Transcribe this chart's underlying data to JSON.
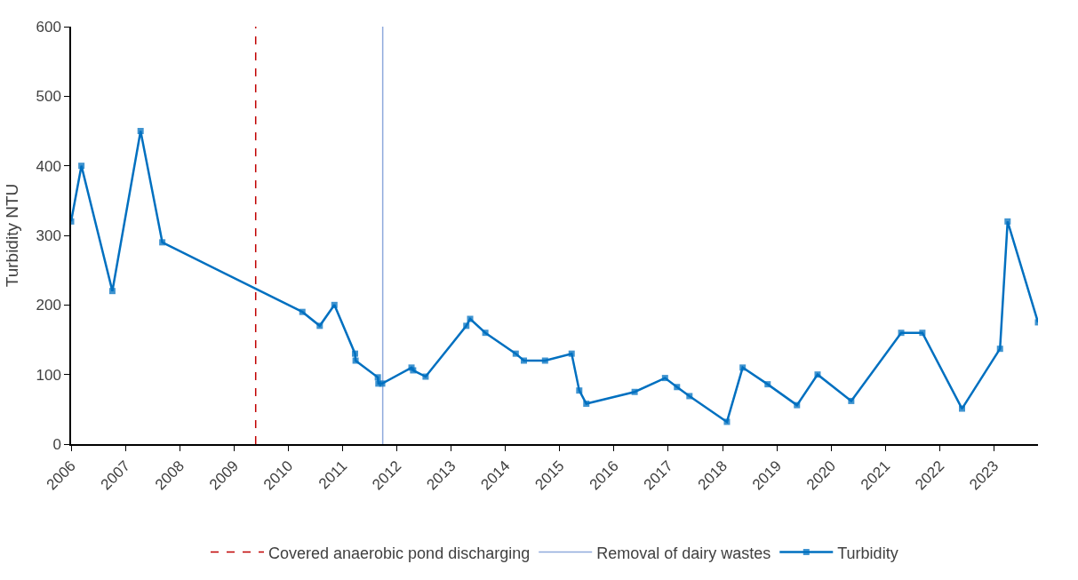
{
  "chart_data": {
    "type": "line",
    "ylabel": "Turbidity NTU",
    "xlim": [
      2006,
      2023.81
    ],
    "xticks": [
      2006,
      2007,
      2008,
      2009,
      2010,
      2011,
      2012,
      2013,
      2014,
      2015,
      2016,
      2017,
      2018,
      2019,
      2020,
      2021,
      2022,
      2023
    ],
    "ylim": [
      0,
      600
    ],
    "yticks": [
      0,
      100,
      200,
      300,
      400,
      500,
      600
    ],
    "legend": "bottom",
    "marker": "square",
    "line_style": "solid",
    "ref_lines": [
      {
        "axis": "x",
        "value": 2009.4,
        "label": "Covered anaerobic pond discharging",
        "color": "#c00000",
        "line_style": "dashed"
      },
      {
        "axis": "x",
        "value": 2011.74,
        "label": "Removal of dairy wastes",
        "color": "#8faadc",
        "line_style": "solid"
      }
    ],
    "series": [
      {
        "name": "Turbidity",
        "color": "#0070c0",
        "x": [
          2006.0,
          2006.19,
          2006.76,
          2007.28,
          2007.68,
          2010.26,
          2010.58,
          2010.85,
          2011.23,
          2011.24,
          2011.65,
          2011.66,
          2011.73,
          2012.27,
          2012.3,
          2012.53,
          2013.28,
          2013.35,
          2013.63,
          2014.19,
          2014.34,
          2014.73,
          2015.22,
          2015.36,
          2015.49,
          2016.38,
          2016.94,
          2017.16,
          2017.39,
          2018.08,
          2018.37,
          2018.83,
          2019.37,
          2019.75,
          2020.37,
          2021.29,
          2021.68,
          2022.41,
          2023.11,
          2023.25,
          2023.81
        ],
        "values": [
          320,
          400,
          220,
          450,
          290,
          190,
          170,
          200,
          130,
          120,
          96,
          87,
          87,
          110,
          106,
          97,
          170,
          180,
          160,
          130,
          120,
          120,
          130,
          77,
          58,
          75,
          95,
          82,
          69,
          32,
          110,
          86,
          56,
          100,
          62,
          160,
          160,
          51,
          137,
          320,
          175
        ]
      }
    ]
  }
}
